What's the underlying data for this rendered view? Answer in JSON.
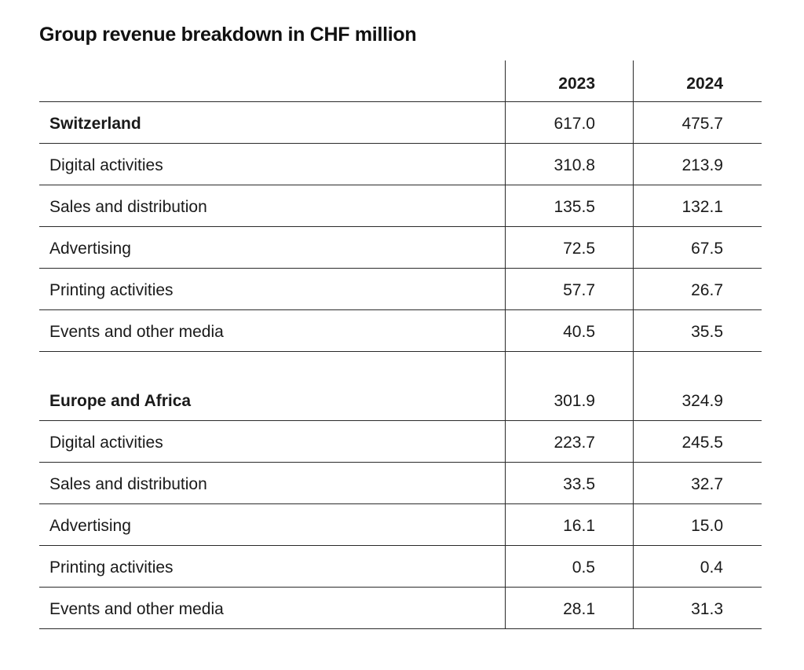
{
  "title": "Group revenue breakdown in CHF million",
  "columns": [
    "2023",
    "2024"
  ],
  "sections": [
    {
      "name": "Switzerland",
      "total": [
        "617.0",
        "475.7"
      ],
      "rows": [
        {
          "label": "Digital activities",
          "v2023": "310.8",
          "v2024": "213.9"
        },
        {
          "label": "Sales and distribution",
          "v2023": "135.5",
          "v2024": "132.1"
        },
        {
          "label": "Advertising",
          "v2023": "72.5",
          "v2024": "67.5"
        },
        {
          "label": "Printing activities",
          "v2023": "57.7",
          "v2024": "26.7"
        },
        {
          "label": "Events and other media",
          "v2023": "40.5",
          "v2024": "35.5"
        }
      ]
    },
    {
      "name": "Europe and Africa",
      "total": [
        "301.9",
        "324.9"
      ],
      "rows": [
        {
          "label": "Digital activities",
          "v2023": "223.7",
          "v2024": "245.5"
        },
        {
          "label": "Sales and distribution",
          "v2023": "33.5",
          "v2024": "32.7"
        },
        {
          "label": "Advertising",
          "v2023": "16.1",
          "v2024": "15.0"
        },
        {
          "label": "Printing activities",
          "v2023": "0.5",
          "v2024": "0.4"
        },
        {
          "label": "Events and other media",
          "v2023": "28.1",
          "v2024": "31.3"
        }
      ]
    }
  ]
}
